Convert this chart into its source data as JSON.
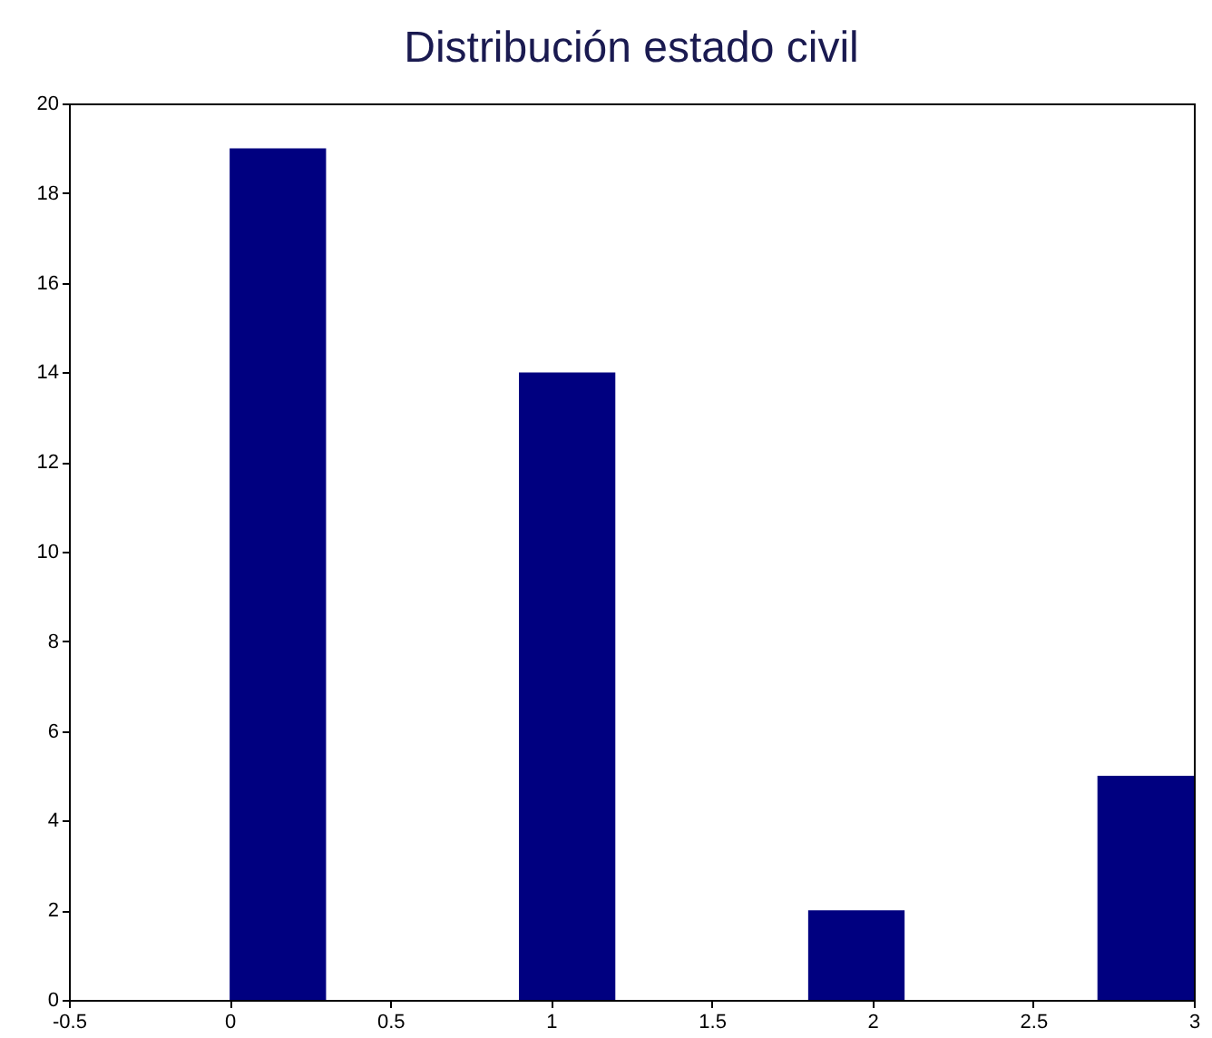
{
  "chart_data": {
    "type": "histogram",
    "title": "Distribución estado civil",
    "bins": [
      0,
      0.3,
      0.6,
      0.9,
      1.2,
      1.5,
      1.8,
      2.1,
      2.4,
      2.7,
      3.0
    ],
    "values": [
      19,
      0,
      0,
      14,
      0,
      0,
      2,
      0,
      0,
      5
    ],
    "color": "#000080",
    "xlim": [
      -0.5,
      3
    ],
    "xticks": [
      -0.5,
      0,
      0.5,
      1,
      1.5,
      2,
      2.5,
      3
    ],
    "ylim": [
      0,
      20
    ],
    "yticks": [
      0,
      2,
      4,
      6,
      8,
      10,
      12,
      14,
      16,
      18,
      20
    ],
    "grid": false
  }
}
